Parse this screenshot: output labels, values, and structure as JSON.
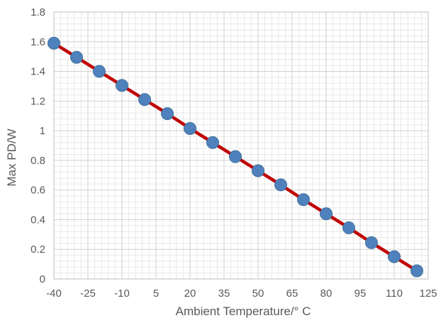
{
  "chart_data": {
    "type": "line",
    "title": "",
    "xlabel": "Ambient Temperature/° C",
    "ylabel": "Max PD/W",
    "xlim": [
      -40,
      125
    ],
    "ylim": [
      0,
      1.8
    ],
    "x_ticks": [
      -40,
      -25,
      -10,
      5,
      20,
      35,
      50,
      65,
      80,
      95,
      110,
      125
    ],
    "y_ticks": [
      0,
      0.2,
      0.4,
      0.6,
      0.8,
      1,
      1.2,
      1.4,
      1.6,
      1.8
    ],
    "grid": true,
    "legend": "none",
    "series": [
      {
        "x": [
          -40,
          -30,
          -20,
          -10,
          0,
          10,
          20,
          30,
          40,
          50,
          60,
          70,
          80,
          90,
          100,
          110,
          120
        ],
        "y": [
          1.59,
          1.495,
          1.4,
          1.305,
          1.21,
          1.115,
          1.015,
          0.92,
          0.825,
          0.73,
          0.635,
          0.535,
          0.44,
          0.345,
          0.245,
          0.15,
          0.055
        ],
        "line_color": "#c00000",
        "marker_color": "#4f81bd"
      }
    ]
  }
}
